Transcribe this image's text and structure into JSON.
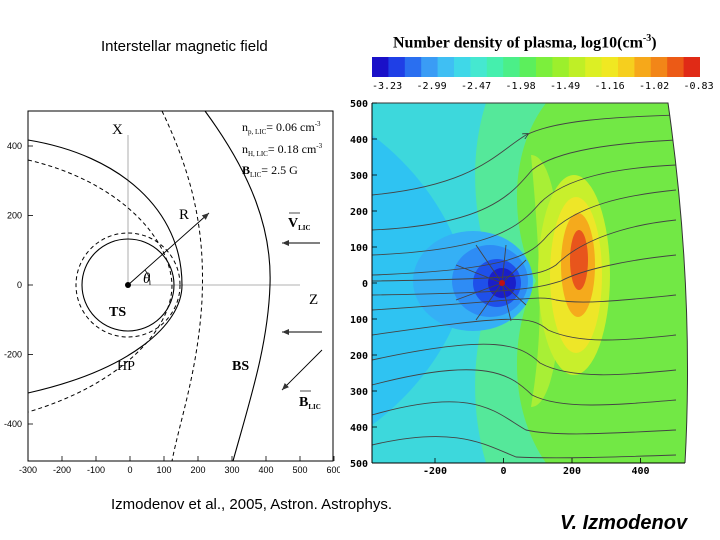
{
  "left_panel": {
    "title": "Interstellar magnetic field",
    "x_ticks": [
      "-300",
      "-200",
      "-100",
      "0",
      "100",
      "200",
      "300",
      "400",
      "500",
      "600"
    ],
    "y_ticks": [
      "400",
      "200",
      "0",
      "-200",
      "-400"
    ],
    "labels": {
      "x_axis": "X",
      "z_axis": "Z",
      "radius": "R",
      "angle": "θ",
      "ts": "TS",
      "hp": "HP",
      "bs": "BS"
    },
    "params": [
      {
        "sym": "n",
        "sub": "p, LIC",
        "rest": "= 0.06 cm",
        "sup": "-3"
      },
      {
        "sym": "n",
        "sub": "H, LIC",
        "rest": "= 0.18 cm",
        "sup": "-3"
      },
      {
        "sym": "B",
        "sub": "LIC",
        "rest": "= 2.5    G",
        "sup": ""
      }
    ],
    "vectors": {
      "v": {
        "sym": "V",
        "sub": "LIC"
      },
      "b": {
        "sym": "B",
        "sub": "LIC"
      }
    }
  },
  "right_panel": {
    "colorbar_title": "Number density of plasma, log10(cm",
    "colorbar_title_sup": "-3",
    "colorbar_title_end": ")",
    "colorbar_ticks": [
      "-3.23",
      "-2.99",
      "-2.47",
      "-1.98",
      "-1.49",
      "-1.16",
      "-1.02",
      "-0.83"
    ],
    "colorbar_colors": [
      "#1a10c8",
      "#1f3fe6",
      "#2a6ff0",
      "#3a9cf5",
      "#3fbff3",
      "#3fd8e8",
      "#45e8d0",
      "#45efad",
      "#4bef88",
      "#5cef5c",
      "#7cef3c",
      "#9cef2c",
      "#bfef26",
      "#dcef24",
      "#f0e822",
      "#f6cf1e",
      "#f6a81a",
      "#f28618",
      "#ec5a16",
      "#e02a16"
    ],
    "y_ticks": [
      "500",
      "400",
      "300",
      "200",
      "100",
      "0",
      "100",
      "200",
      "300",
      "400",
      "500"
    ],
    "x_ticks": [
      "-200",
      "0",
      "200",
      "400"
    ]
  },
  "citation": "Izmodenov et al., 2005, Astron. Astrophys.",
  "author": "V. Izmodenov"
}
